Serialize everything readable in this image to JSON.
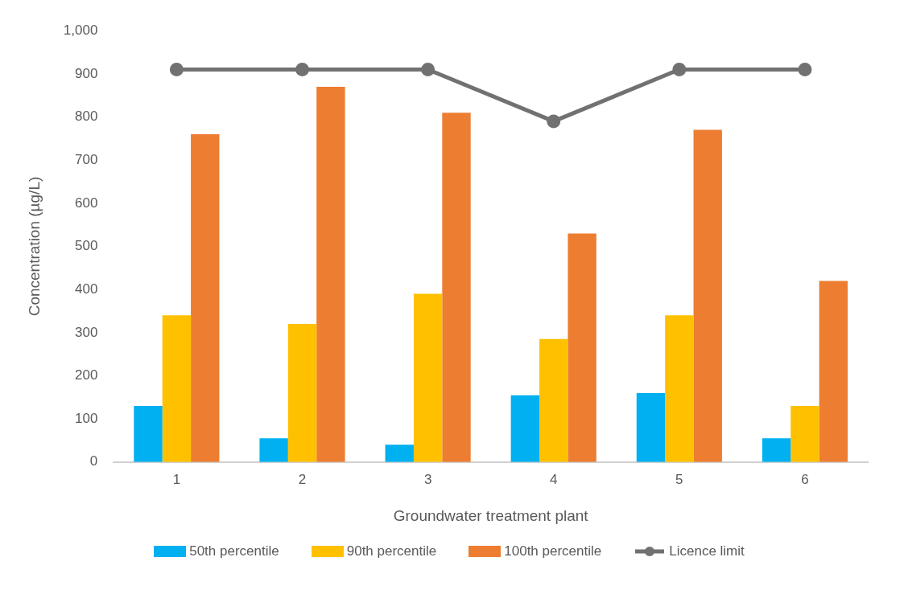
{
  "chart_data": {
    "type": "bar",
    "xlabel": "Groundwater treatment plant",
    "ylabel": "Concentration (µg/L)",
    "categories": [
      "1",
      "2",
      "3",
      "4",
      "5",
      "6"
    ],
    "series": [
      {
        "name": "50th percentile",
        "color": "#00b0f0",
        "values": [
          130,
          55,
          40,
          155,
          160,
          55
        ]
      },
      {
        "name": "90th percentile",
        "color": "#ffc000",
        "values": [
          340,
          320,
          390,
          285,
          340,
          130
        ]
      },
      {
        "name": "100th percentile",
        "color": "#ed7d31",
        "values": [
          760,
          870,
          810,
          530,
          770,
          420
        ]
      },
      {
        "name": "Licence limit",
        "type": "line",
        "color": "#717171",
        "values": [
          910,
          910,
          910,
          790,
          910,
          910
        ]
      }
    ],
    "ylim": [
      0,
      1000
    ],
    "yticks": [
      0,
      100,
      200,
      300,
      400,
      500,
      600,
      700,
      800,
      900,
      {
        "value": 1000,
        "label": "1,000"
      }
    ],
    "grid": false,
    "legend": "bottom",
    "marker": "circle"
  }
}
